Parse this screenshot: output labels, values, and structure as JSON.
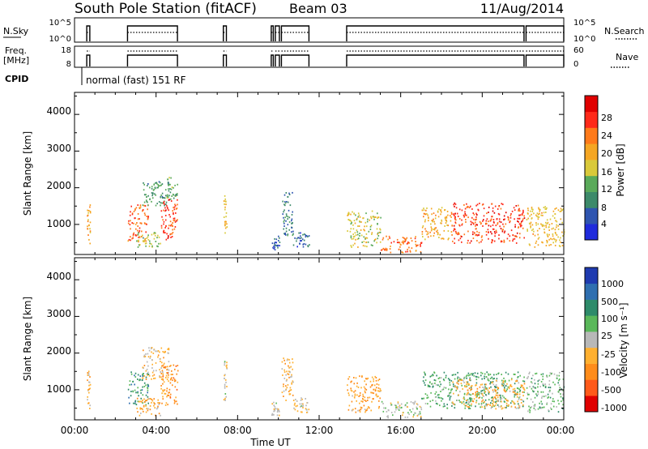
{
  "header": {
    "title": "South Pole Station (fitACF)",
    "beam": "Beam 03",
    "date": "11/Aug/2014"
  },
  "top_panels": {
    "nsky_label": "N.Sky",
    "nsky_ticks": [
      "10^5",
      "10^0"
    ],
    "nsearch_label": "N.Search",
    "nsearch_ticks": [
      "10^5",
      "10^0"
    ],
    "freq_label": "Freq.",
    "freq_unit": "[MHz]",
    "freq_ticks": [
      "18",
      "8"
    ],
    "nave_label": "Nave",
    "nave_ticks": [
      "60",
      "0"
    ],
    "cpid_label": "CPID",
    "cpid_text": "normal (fast) 151 RF",
    "operation_segments_hours": [
      [
        0.6,
        0.75
      ],
      [
        2.6,
        5.05
      ],
      [
        7.3,
        7.45
      ],
      [
        9.65,
        9.75
      ],
      [
        9.85,
        10.05
      ],
      [
        10.15,
        11.5
      ],
      [
        13.35,
        22.05
      ],
      [
        22.15,
        24.0
      ]
    ]
  },
  "x_axis": {
    "label": "Time UT",
    "tick_labels": [
      "00:00",
      "04:00",
      "08:00",
      "12:00",
      "16:00",
      "20:00",
      "00:00"
    ]
  },
  "power_panel": {
    "ylabel": "Slant Range [km]",
    "y_ticks": [
      "1000",
      "2000",
      "3000",
      "4000"
    ],
    "colorbar_label": "Power [dB]",
    "colorbar_ticks": [
      "4",
      "8",
      "12",
      "16",
      "20",
      "24",
      "28"
    ]
  },
  "velocity_panel": {
    "ylabel": "Slant Range [km]",
    "y_ticks": [
      "1000",
      "2000",
      "3000",
      "4000"
    ],
    "colorbar_label": "Velocity [m s⁻¹]",
    "colorbar_ticks": [
      "1000",
      "500",
      "100",
      "25",
      "-25",
      "-100",
      "-500",
      "-1000"
    ]
  },
  "colors": {
    "power_scale": [
      "#1f2bdc",
      "#2f55b0",
      "#3d8a6a",
      "#5aaa5a",
      "#d9c93a",
      "#f5a623",
      "#ff7a1a",
      "#ff2a1a",
      "#e00000"
    ],
    "velocity_scale": [
      "#1f3bb0",
      "#2f6fb0",
      "#2e8b6a",
      "#5ab85a",
      "#b8b8b8",
      "#ffb030",
      "#ff8c1a",
      "#ff5a1a",
      "#e00000"
    ]
  },
  "chart_data": {
    "type": "heatmap",
    "title": "South Pole Station (fitACF)",
    "xlabel": "Time UT",
    "ylabel": "Slant Range [km]",
    "xlim": [
      0,
      24
    ],
    "ylim": [
      180,
      4600
    ],
    "x_units": "hours UT",
    "power_clim": [
      0,
      32
    ],
    "velocity_clim": [
      -1000,
      1000
    ],
    "series": [
      {
        "name": "Power",
        "blobs": [
          {
            "t": [
              0.6,
              0.75
            ],
            "r": [
              500,
              1550
            ],
            "v": 20
          },
          {
            "t": [
              2.6,
              3.6
            ],
            "r": [
              550,
              1550
            ],
            "v": 24
          },
          {
            "t": [
              3.0,
              4.2
            ],
            "r": [
              400,
              800
            ],
            "v": 14
          },
          {
            "t": [
              3.3,
              4.6
            ],
            "r": [
              1500,
              2200
            ],
            "v": 10
          },
          {
            "t": [
              4.2,
              5.05
            ],
            "r": [
              600,
              1700
            ],
            "v": 26
          },
          {
            "t": [
              4.5,
              5.05
            ],
            "r": [
              1700,
              2300
            ],
            "v": 12
          },
          {
            "t": [
              7.3,
              7.45
            ],
            "r": [
              700,
              1800
            ],
            "v": 18
          },
          {
            "t": [
              9.65,
              10.05
            ],
            "r": [
              300,
              700
            ],
            "v": 6
          },
          {
            "t": [
              10.15,
              10.7
            ],
            "r": [
              700,
              1900
            ],
            "v": 8
          },
          {
            "t": [
              10.7,
              11.5
            ],
            "r": [
              400,
              800
            ],
            "v": 6
          },
          {
            "t": [
              13.35,
              15.0
            ],
            "r": [
              400,
              1400
            ],
            "v": 16
          },
          {
            "t": [
              15.0,
              17.0
            ],
            "r": [
              250,
              700
            ],
            "v": 24
          },
          {
            "t": [
              17.0,
              18.5
            ],
            "r": [
              600,
              1500
            ],
            "v": 20
          },
          {
            "t": [
              18.5,
              22.05
            ],
            "r": [
              500,
              1600
            ],
            "v": 26
          },
          {
            "t": [
              22.15,
              24.0
            ],
            "r": [
              400,
              1500
            ],
            "v": 18
          }
        ]
      },
      {
        "name": "Velocity",
        "blobs": [
          {
            "t": [
              0.6,
              0.75
            ],
            "r": [
              500,
              1550
            ],
            "v": -200
          },
          {
            "t": [
              2.6,
              3.6
            ],
            "r": [
              600,
              1500
            ],
            "v": 400
          },
          {
            "t": [
              3.0,
              4.2
            ],
            "r": [
              300,
              800
            ],
            "v": -300
          },
          {
            "t": [
              3.3,
              4.6
            ],
            "r": [
              1300,
              2200
            ],
            "v": -150
          },
          {
            "t": [
              4.2,
              5.05
            ],
            "r": [
              600,
              1700
            ],
            "v": -400
          },
          {
            "t": [
              7.3,
              7.45
            ],
            "r": [
              700,
              1800
            ],
            "v": -100
          },
          {
            "t": [
              9.65,
              10.05
            ],
            "r": [
              300,
              700
            ],
            "v": -80
          },
          {
            "t": [
              10.15,
              10.7
            ],
            "r": [
              700,
              1900
            ],
            "v": -200
          },
          {
            "t": [
              10.7,
              11.5
            ],
            "r": [
              400,
              800
            ],
            "v": -60
          },
          {
            "t": [
              13.35,
              15.0
            ],
            "r": [
              400,
              1400
            ],
            "v": -300
          },
          {
            "t": [
              15.0,
              17.0
            ],
            "r": [
              250,
              700
            ],
            "v": 60
          },
          {
            "t": [
              17.0,
              22.05
            ],
            "r": [
              500,
              1500
            ],
            "v": 300
          },
          {
            "t": [
              18.5,
              22.05
            ],
            "r": [
              500,
              1300
            ],
            "v": -250
          },
          {
            "t": [
              22.15,
              24.0
            ],
            "r": [
              400,
              1500
            ],
            "v": 200
          }
        ]
      }
    ]
  }
}
